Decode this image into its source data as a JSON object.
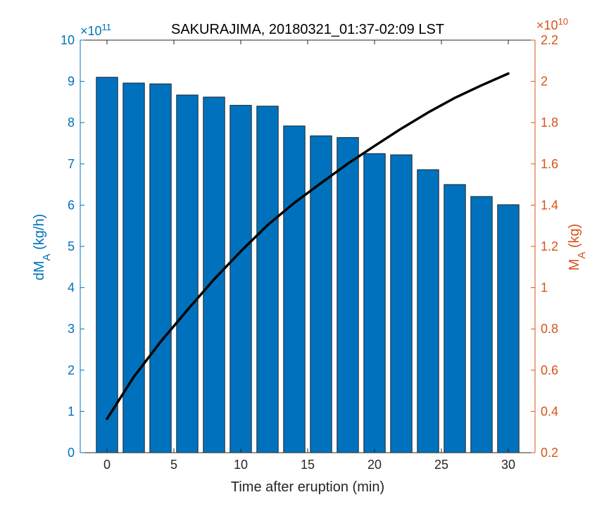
{
  "chart_data": {
    "type": "bar",
    "title": "SAKURAJIMA, 20180321_01:37-02:09 LST",
    "xlabel": "Time after eruption (min)",
    "ylabel_left": {
      "main": "dM",
      "sub": "A",
      "unit": " (kg/h)"
    },
    "ylabel_right": {
      "main": "M",
      "sub": "A",
      "unit": " (kg)"
    },
    "left_exponent": {
      "base": "×10",
      "power": "11"
    },
    "right_exponent": {
      "base": "×10",
      "power": "10"
    },
    "xlim": [
      -2,
      32
    ],
    "ylim_left": [
      0,
      10
    ],
    "ylim_right": [
      0.2,
      2.2
    ],
    "x_ticks": [
      0,
      5,
      10,
      15,
      20,
      25,
      30
    ],
    "y_left_ticks": [
      0,
      1,
      2,
      3,
      4,
      5,
      6,
      7,
      8,
      9,
      10
    ],
    "y_right_ticks": [
      0.2,
      0.4,
      0.6,
      0.8,
      1,
      1.2,
      1.4,
      1.6,
      1.8,
      2,
      2.2
    ],
    "bars": {
      "name": "dMA",
      "x": [
        0,
        2,
        4,
        6,
        8,
        10,
        12,
        14,
        16,
        18,
        20,
        22,
        24,
        26,
        28,
        30
      ],
      "values": [
        9.1,
        8.96,
        8.94,
        8.67,
        8.62,
        8.42,
        8.4,
        7.92,
        7.68,
        7.64,
        7.25,
        7.22,
        6.86,
        6.5,
        6.21,
        6.01
      ],
      "color": "#0072BD"
    },
    "line": {
      "name": "MA",
      "x": [
        0,
        2,
        4,
        6,
        8,
        10,
        12,
        14,
        16,
        18,
        20,
        22,
        24,
        26,
        28,
        30
      ],
      "values": [
        0.364,
        0.567,
        0.737,
        0.891,
        1.04,
        1.176,
        1.303,
        1.411,
        1.507,
        1.601,
        1.687,
        1.771,
        1.849,
        1.92,
        1.981,
        2.038
      ],
      "color": "#000000"
    },
    "grid": false,
    "colors": {
      "left_axis": "#0072BD",
      "right_axis": "#D95319",
      "axis": "#262626"
    }
  }
}
